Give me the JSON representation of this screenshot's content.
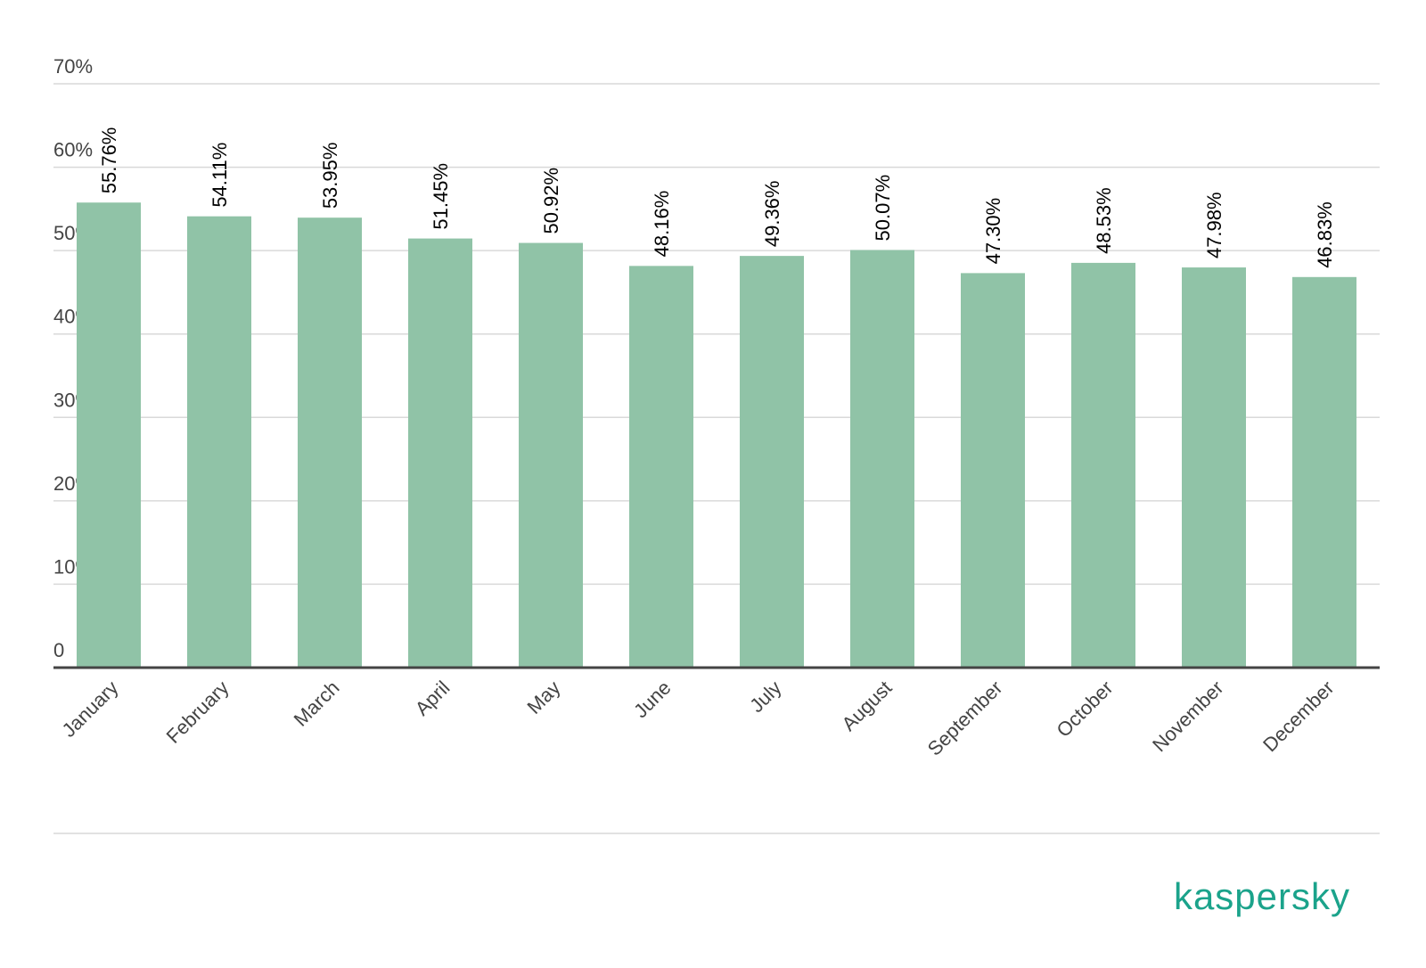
{
  "chart_data": {
    "type": "bar",
    "categories": [
      "January",
      "February",
      "March",
      "April",
      "May",
      "June",
      "July",
      "August",
      "September",
      "October",
      "November",
      "December"
    ],
    "values": [
      55.76,
      54.11,
      53.95,
      51.45,
      50.92,
      48.16,
      49.36,
      50.07,
      47.3,
      48.53,
      47.98,
      46.83
    ],
    "value_labels": [
      "55.76%",
      "54.11%",
      "53.95%",
      "51.45%",
      "50.92%",
      "48.16%",
      "49.36%",
      "50.07%",
      "47.30%",
      "48.53%",
      "47.98%",
      "46.83%"
    ],
    "color": "#90c3a7",
    "ylim": [
      0,
      70
    ],
    "yticks": [
      0,
      {
        "value": 10,
        "label": "10%"
      },
      {
        "value": 20,
        "label": "20%"
      },
      {
        "value": 30,
        "label": "30%"
      },
      {
        "value": 40,
        "label": "40%"
      },
      {
        "value": 50,
        "label": "50%"
      },
      {
        "value": 60,
        "label": "60%"
      },
      {
        "value": 70,
        "label": "70%"
      }
    ],
    "grid": true
  },
  "brand": "kaspersky"
}
